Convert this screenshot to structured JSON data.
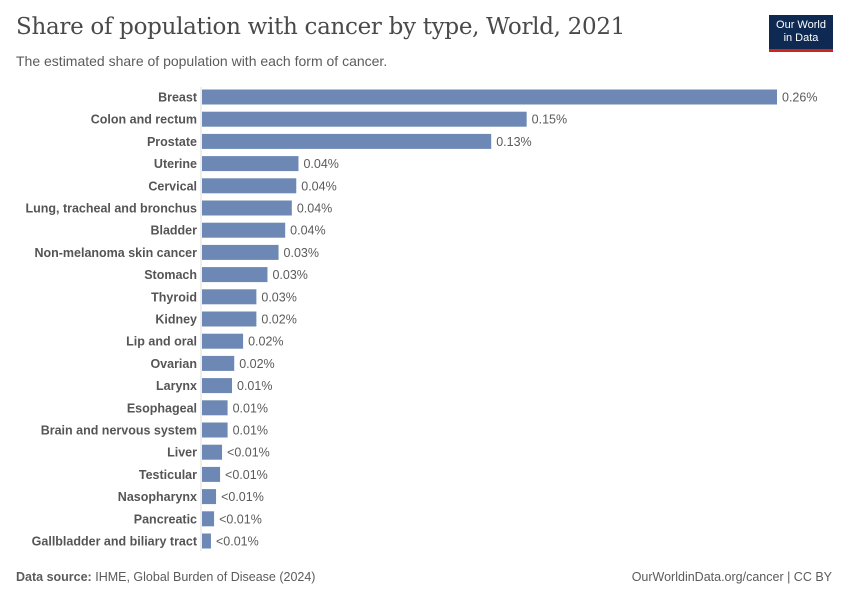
{
  "title": "Share of population with cancer by type, World, 2021",
  "subtitle": "The estimated share of population with each form of cancer.",
  "logo": {
    "line1": "Our World",
    "line2": "in Data"
  },
  "footer": {
    "source_label": "Data source:",
    "source": "IHME, Global Burden of Disease (2024)",
    "link": "OurWorldinData.org/cancer | CC BY"
  },
  "colors": {
    "bar": "#6d88b4",
    "text": "#5b5b5b"
  },
  "chart_data": {
    "type": "bar",
    "orientation": "horizontal",
    "unit": "%",
    "categories": [
      "Breast",
      "Colon and rectum",
      "Prostate",
      "Uterine",
      "Cervical",
      "Lung, tracheal and bronchus",
      "Bladder",
      "Non-melanoma skin cancer",
      "Stomach",
      "Thyroid",
      "Kidney",
      "Lip and oral",
      "Ovarian",
      "Larynx",
      "Esophageal",
      "Brain and nervous system",
      "Liver",
      "Testicular",
      "Nasopharynx",
      "Pancreatic",
      "Gallbladder and biliary tract"
    ],
    "values": [
      0.26,
      0.147,
      0.131,
      0.044,
      0.043,
      0.041,
      0.038,
      0.035,
      0.03,
      0.025,
      0.025,
      0.019,
      0.015,
      0.014,
      0.012,
      0.012,
      0.0095,
      0.0086,
      0.0068,
      0.0059,
      0.0045
    ],
    "labels": [
      "0.26%",
      "0.15%",
      "0.13%",
      "0.04%",
      "0.04%",
      "0.04%",
      "0.04%",
      "0.03%",
      "0.03%",
      "0.03%",
      "0.02%",
      "0.02%",
      "0.02%",
      "0.01%",
      "0.01%",
      "0.01%",
      "<0.01%",
      "<0.01%",
      "<0.01%",
      "<0.01%",
      "<0.01%"
    ],
    "xlim": [
      0,
      0.26
    ]
  }
}
